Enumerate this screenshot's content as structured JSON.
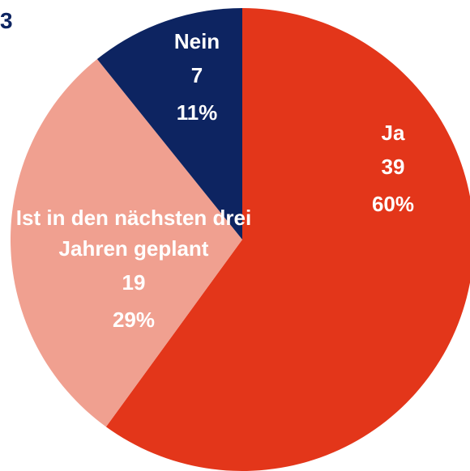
{
  "chart_data": {
    "type": "pie",
    "title": "3",
    "categories": [
      "Ja",
      "Ist in den nächsten drei Jahren geplant",
      "Nein"
    ],
    "values": [
      39,
      19,
      7
    ],
    "percent_labels": [
      "60%",
      "29%",
      "11%"
    ],
    "colors": [
      "#e3361a",
      "#f0a090",
      "#0d2461"
    ]
  }
}
